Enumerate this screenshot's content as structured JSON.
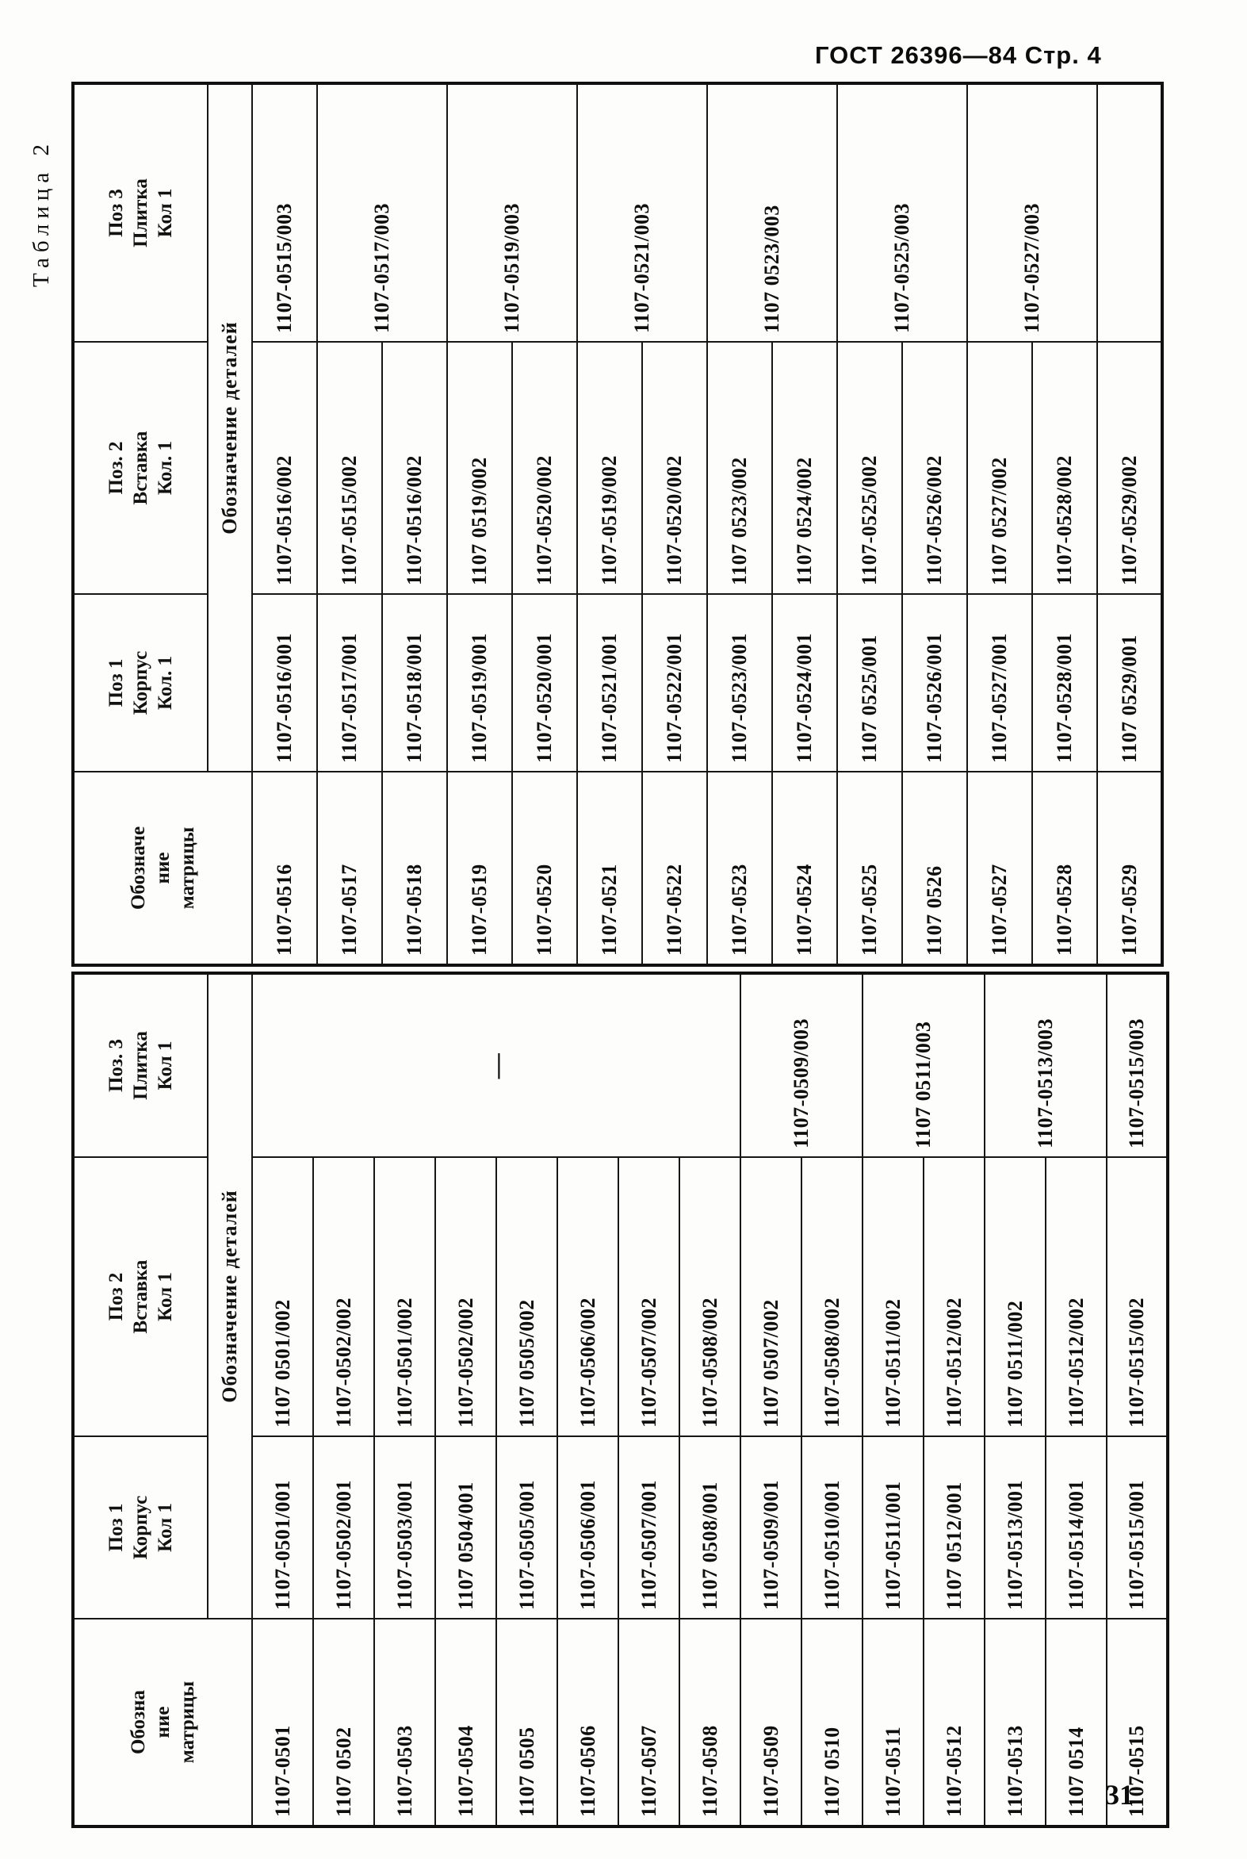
{
  "page": {
    "gost_header": "ГОСТ 26396—84  Стр. 4",
    "page_number": "31",
    "table_caption": "Таблица 2"
  },
  "colors": {
    "ink": "#101010",
    "paper": "#fdfdfb"
  },
  "table": {
    "left": {
      "header": {
        "matrix": [
          "Обозна",
          "ние",
          "матрицы"
        ],
        "pos1": [
          "Поз 1",
          "Корпус",
          "Кол 1"
        ],
        "pos2": [
          "Поз 2",
          "Вставка",
          "Кол 1"
        ],
        "pos3": [
          "Поз. 3",
          "Плитка",
          "Кол 1"
        ],
        "details": "Обозначение деталей"
      },
      "rows": [
        [
          "1107-0501",
          "1107-0501/001",
          "1107 0501/002"
        ],
        [
          "1107 0502",
          "1107-0502/001",
          "1107-0502/002"
        ],
        [
          "1107-0503",
          "1107-0503/001",
          "1107-0501/002"
        ],
        [
          "1107-0504",
          "1107 0504/001",
          "1107-0502/002"
        ],
        [
          "1107 0505",
          "1107-0505/001",
          "1107 0505/002"
        ],
        [
          "1107-0506",
          "1107-0506/001",
          "1107-0506/002"
        ],
        [
          "1107-0507",
          "1107-0507/001",
          "1107-0507/002"
        ],
        [
          "1107-0508",
          "1107 0508/001",
          "1107-0508/002"
        ],
        [
          "1107-0509",
          "1107-0509/001",
          "1107 0507/002"
        ],
        [
          "1107 0510",
          "1107-0510/001",
          "1107-0508/002"
        ],
        [
          "1107-0511",
          "1107-0511/001",
          "1107-0511/002"
        ],
        [
          "1107-0512",
          "1107 0512/001",
          "1107-0512/002"
        ],
        [
          "1107-0513",
          "1107-0513/001",
          "1107 0511/002"
        ],
        [
          "1107 0514",
          "1107-0514/001",
          "1107-0512/002"
        ],
        [
          "1107-0515",
          "1107-0515/001",
          "1107-0515/002"
        ]
      ],
      "p3": [
        {
          "span": 8,
          "text": "—",
          "dash": true
        },
        {
          "span": 2,
          "text": "1107-0509/003"
        },
        {
          "span": 2,
          "text": "1107 0511/003"
        },
        {
          "span": 2,
          "text": "1107-0513/003"
        },
        {
          "span": 1,
          "text": "1107-0515/003"
        }
      ]
    },
    "right": {
      "header": {
        "matrix": [
          "Обозначе",
          "ние",
          "матрицы"
        ],
        "pos1": [
          "Поз 1",
          "Корпус",
          "Кол. 1"
        ],
        "pos2": [
          "Поз. 2",
          "Вставка",
          "Кол. 1"
        ],
        "pos3": [
          "Поз 3",
          "Плитка",
          "Кол 1"
        ],
        "details": "Обозначение деталей"
      },
      "rows": [
        [
          "1107-0516",
          "1107-0516/001",
          "1107-0516/002"
        ],
        [
          "1107-0517",
          "1107-0517/001",
          "1107-0515/002"
        ],
        [
          "1107-0518",
          "1107-0518/001",
          "1107-0516/002"
        ],
        [
          "1107-0519",
          "1107-0519/001",
          "1107 0519/002"
        ],
        [
          "1107-0520",
          "1107-0520/001",
          "1107-0520/002"
        ],
        [
          "1107-0521",
          "1107-0521/001",
          "1107-0519/002"
        ],
        [
          "1107-0522",
          "1107-0522/001",
          "1107-0520/002"
        ],
        [
          "1107-0523",
          "1107-0523/001",
          "1107 0523/002"
        ],
        [
          "1107-0524",
          "1107-0524/001",
          "1107 0524/002"
        ],
        [
          "1107-0525",
          "1107 0525/001",
          "1107-0525/002"
        ],
        [
          "1107 0526",
          "1107-0526/001",
          "1107-0526/002"
        ],
        [
          "1107-0527",
          "1107-0527/001",
          "1107 0527/002"
        ],
        [
          "1107-0528",
          "1107-0528/001",
          "1107-0528/002"
        ],
        [
          "1107-0529",
          "1107 0529/001",
          "1107-0529/002"
        ]
      ],
      "p3": [
        {
          "span": 1,
          "text": "1107-0515/003"
        },
        {
          "span": 2,
          "text": "1107-0517/003"
        },
        {
          "span": 2,
          "text": "1107-0519/003"
        },
        {
          "span": 2,
          "text": "1107-0521/003"
        },
        {
          "span": 2,
          "text": "1107 0523/003"
        },
        {
          "span": 2,
          "text": "1107-0525/003"
        },
        {
          "span": 2,
          "text": "1107-0527/003"
        },
        {
          "span": 1,
          "text": "",
          "empty": true
        }
      ]
    }
  }
}
